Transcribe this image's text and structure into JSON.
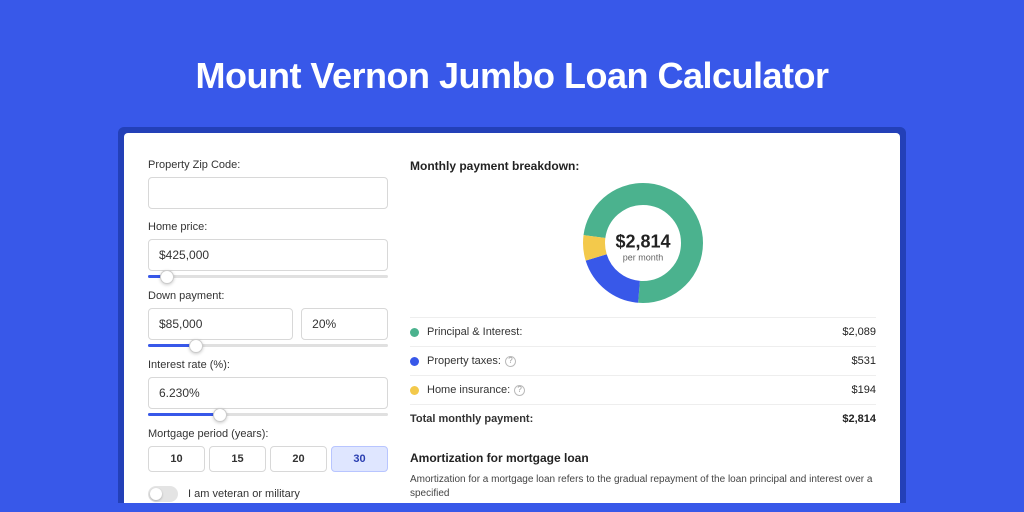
{
  "colors": {
    "page_bg": "#3858e9",
    "shadow_bg": "#2340b8",
    "card_bg": "#ffffff",
    "accent": "#3858e9",
    "pi": "#4bb28e",
    "tax": "#3858e9",
    "ins": "#f3c94b"
  },
  "title": "Mount Vernon Jumbo Loan Calculator",
  "form": {
    "zip": {
      "label": "Property Zip Code:",
      "value": ""
    },
    "price": {
      "label": "Home price:",
      "value": "$425,000",
      "slider_pct": 8
    },
    "down": {
      "label": "Down payment:",
      "amount": "$85,000",
      "pct": "20%",
      "slider_pct": 20
    },
    "rate": {
      "label": "Interest rate (%):",
      "value": "6.230%",
      "slider_pct": 30
    },
    "period": {
      "label": "Mortgage period (years):",
      "options": [
        "10",
        "15",
        "20",
        "30"
      ],
      "active": 3
    },
    "veteran": {
      "label": "I am veteran or military"
    }
  },
  "breakdown": {
    "title": "Monthly payment breakdown:",
    "donut": {
      "amount": "$2,814",
      "sub": "per month",
      "segments": [
        {
          "value": 2089,
          "color": "#4bb28e"
        },
        {
          "value": 531,
          "color": "#3858e9"
        },
        {
          "value": 194,
          "color": "#f3c94b"
        }
      ],
      "size": 120,
      "stroke": 22
    },
    "rows": [
      {
        "dot": "#4bb28e",
        "label": "Principal & Interest:",
        "info": false,
        "value": "$2,089"
      },
      {
        "dot": "#3858e9",
        "label": "Property taxes:",
        "info": true,
        "value": "$531"
      },
      {
        "dot": "#f3c94b",
        "label": "Home insurance:",
        "info": true,
        "value": "$194"
      }
    ],
    "total": {
      "label": "Total monthly payment:",
      "value": "$2,814"
    }
  },
  "amort": {
    "title": "Amortization for mortgage loan",
    "text": "Amortization for a mortgage loan refers to the gradual repayment of the loan principal and interest over a specified"
  }
}
